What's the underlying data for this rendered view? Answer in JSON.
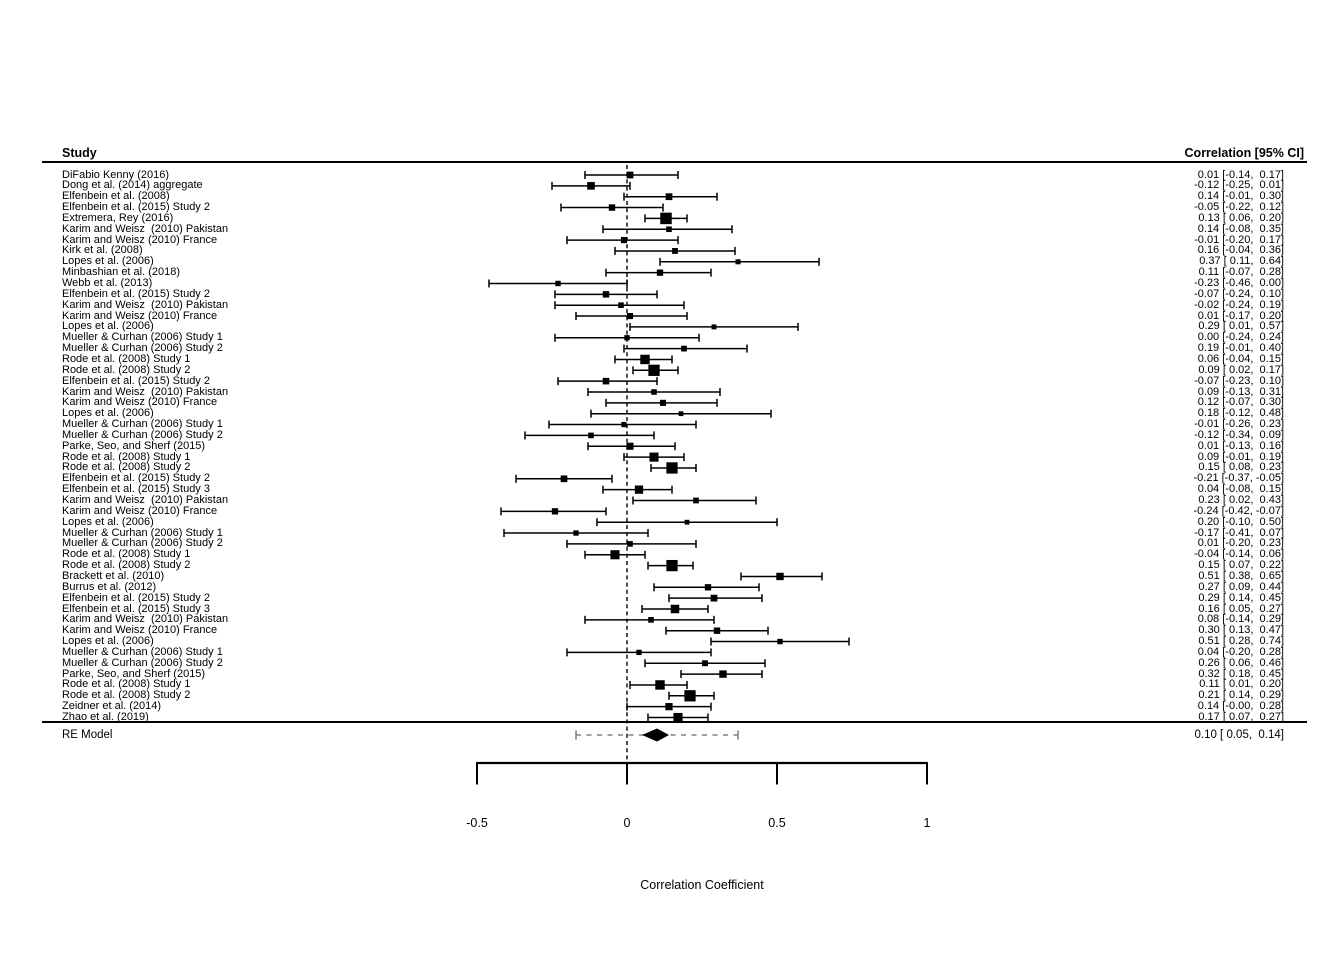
{
  "colors": {
    "foreground": "#000000",
    "background": "#ffffff",
    "summary_interval_dashes": "#808080"
  },
  "chart_data": {
    "type": "scatter",
    "variant": "forest-plot-meta-analysis",
    "title": "",
    "xlabel": "Correlation Coefficient",
    "xlim": [
      -0.5,
      1
    ],
    "xticks": [
      -0.5,
      0,
      0.5,
      1
    ],
    "xtick_labels": [
      "-0.5",
      "0",
      "0.5",
      "1"
    ],
    "zero_reference_line": 0,
    "grid": false,
    "columns": {
      "study": "Study",
      "annotation": "Correlation [95% CI]"
    },
    "rows": [
      {
        "study": "DiFabio Kenny (2016)",
        "est": 0.01,
        "lo": -0.14,
        "hi": 0.17,
        "annotation": "0.01 [-0.14,  0.17]"
      },
      {
        "study": "Dong et al. (2014) aggregate",
        "est": -0.12,
        "lo": -0.25,
        "hi": 0.01,
        "annotation": "-0.12 [-0.25,  0.01]"
      },
      {
        "study": "Elfenbein et al. (2008)",
        "est": 0.14,
        "lo": -0.01,
        "hi": 0.3,
        "annotation": "0.14 [-0.01,  0.30]"
      },
      {
        "study": "Elfenbein et al. (2015) Study 2",
        "est": -0.05,
        "lo": -0.22,
        "hi": 0.12,
        "annotation": "-0.05 [-0.22,  0.12]"
      },
      {
        "study": "Extremera, Rey (2016)",
        "est": 0.13,
        "lo": 0.06,
        "hi": 0.2,
        "annotation": "0.13 [ 0.06,  0.20]"
      },
      {
        "study": "Karim and Weisz  (2010) Pakistan",
        "est": 0.14,
        "lo": -0.08,
        "hi": 0.35,
        "annotation": "0.14 [-0.08,  0.35]"
      },
      {
        "study": "Karim and Weisz (2010) France",
        "est": -0.01,
        "lo": -0.2,
        "hi": 0.17,
        "annotation": "-0.01 [-0.20,  0.17]"
      },
      {
        "study": "Kirk et al. (2008)",
        "est": 0.16,
        "lo": -0.04,
        "hi": 0.36,
        "annotation": "0.16 [-0.04,  0.36]"
      },
      {
        "study": "Lopes et al. (2006)",
        "est": 0.37,
        "lo": 0.11,
        "hi": 0.64,
        "annotation": "0.37 [ 0.11,  0.64]"
      },
      {
        "study": "Minbashian et al. (2018)",
        "est": 0.11,
        "lo": -0.07,
        "hi": 0.28,
        "annotation": "0.11 [-0.07,  0.28]"
      },
      {
        "study": "Webb et al. (2013)",
        "est": -0.23,
        "lo": -0.46,
        "hi": 0.0,
        "annotation": "-0.23 [-0.46,  0.00]"
      },
      {
        "study": "Elfenbein et al. (2015) Study 2",
        "est": -0.07,
        "lo": -0.24,
        "hi": 0.1,
        "annotation": "-0.07 [-0.24,  0.10]"
      },
      {
        "study": "Karim and Weisz  (2010) Pakistan",
        "est": -0.02,
        "lo": -0.24,
        "hi": 0.19,
        "annotation": "-0.02 [-0.24,  0.19]"
      },
      {
        "study": "Karim and Weisz (2010) France",
        "est": 0.01,
        "lo": -0.17,
        "hi": 0.2,
        "annotation": "0.01 [-0.17,  0.20]"
      },
      {
        "study": "Lopes et al. (2006)",
        "est": 0.29,
        "lo": 0.01,
        "hi": 0.57,
        "annotation": "0.29 [ 0.01,  0.57]"
      },
      {
        "study": "Mueller & Curhan (2006) Study 1",
        "est": 0.0,
        "lo": -0.24,
        "hi": 0.24,
        "annotation": "0.00 [-0.24,  0.24]"
      },
      {
        "study": "Mueller & Curhan (2006) Study 2",
        "est": 0.19,
        "lo": -0.01,
        "hi": 0.4,
        "annotation": "0.19 [-0.01,  0.40]"
      },
      {
        "study": "Rode et al. (2008) Study 1",
        "est": 0.06,
        "lo": -0.04,
        "hi": 0.15,
        "annotation": "0.06 [-0.04,  0.15]"
      },
      {
        "study": "Rode et al. (2008) Study 2",
        "est": 0.09,
        "lo": 0.02,
        "hi": 0.17,
        "annotation": "0.09 [ 0.02,  0.17]"
      },
      {
        "study": "Elfenbein et al. (2015) Study 2",
        "est": -0.07,
        "lo": -0.23,
        "hi": 0.1,
        "annotation": "-0.07 [-0.23,  0.10]"
      },
      {
        "study": "Karim and Weisz  (2010) Pakistan",
        "est": 0.09,
        "lo": -0.13,
        "hi": 0.31,
        "annotation": "0.09 [-0.13,  0.31]"
      },
      {
        "study": "Karim and Weisz (2010) France",
        "est": 0.12,
        "lo": -0.07,
        "hi": 0.3,
        "annotation": "0.12 [-0.07,  0.30]"
      },
      {
        "study": "Lopes et al. (2006)",
        "est": 0.18,
        "lo": -0.12,
        "hi": 0.48,
        "annotation": "0.18 [-0.12,  0.48]"
      },
      {
        "study": "Mueller & Curhan (2006) Study 1",
        "est": -0.01,
        "lo": -0.26,
        "hi": 0.23,
        "annotation": "-0.01 [-0.26,  0.23]"
      },
      {
        "study": "Mueller & Curhan (2006) Study 2",
        "est": -0.12,
        "lo": -0.34,
        "hi": 0.09,
        "annotation": "-0.12 [-0.34,  0.09]"
      },
      {
        "study": "Parke, Seo, and Sherf (2015)",
        "est": 0.01,
        "lo": -0.13,
        "hi": 0.16,
        "annotation": "0.01 [-0.13,  0.16]"
      },
      {
        "study": "Rode et al. (2008) Study 1",
        "est": 0.09,
        "lo": -0.01,
        "hi": 0.19,
        "annotation": "0.09 [-0.01,  0.19]"
      },
      {
        "study": "Rode et al. (2008) Study 2",
        "est": 0.15,
        "lo": 0.08,
        "hi": 0.23,
        "annotation": "0.15 [ 0.08,  0.23]"
      },
      {
        "study": "Elfenbein et al. (2015) Study 2",
        "est": -0.21,
        "lo": -0.37,
        "hi": -0.05,
        "annotation": "-0.21 [-0.37, -0.05]"
      },
      {
        "study": "Elfenbein et al. (2015) Study 3",
        "est": 0.04,
        "lo": -0.08,
        "hi": 0.15,
        "annotation": "0.04 [-0.08,  0.15]"
      },
      {
        "study": "Karim and Weisz  (2010) Pakistan",
        "est": 0.23,
        "lo": 0.02,
        "hi": 0.43,
        "annotation": "0.23 [ 0.02,  0.43]"
      },
      {
        "study": "Karim and Weisz (2010) France",
        "est": -0.24,
        "lo": -0.42,
        "hi": -0.07,
        "annotation": "-0.24 [-0.42, -0.07]"
      },
      {
        "study": "Lopes et al. (2006)",
        "est": 0.2,
        "lo": -0.1,
        "hi": 0.5,
        "annotation": "0.20 [-0.10,  0.50]"
      },
      {
        "study": "Mueller & Curhan (2006) Study 1",
        "est": -0.17,
        "lo": -0.41,
        "hi": 0.07,
        "annotation": "-0.17 [-0.41,  0.07]"
      },
      {
        "study": "Mueller & Curhan (2006) Study 2",
        "est": 0.01,
        "lo": -0.2,
        "hi": 0.23,
        "annotation": "0.01 [-0.20,  0.23]"
      },
      {
        "study": "Rode et al. (2008) Study 1",
        "est": -0.04,
        "lo": -0.14,
        "hi": 0.06,
        "annotation": "-0.04 [-0.14,  0.06]"
      },
      {
        "study": "Rode et al. (2008) Study 2",
        "est": 0.15,
        "lo": 0.07,
        "hi": 0.22,
        "annotation": "0.15 [ 0.07,  0.22]"
      },
      {
        "study": "Brackett et al. (2010)",
        "est": 0.51,
        "lo": 0.38,
        "hi": 0.65,
        "annotation": "0.51 [ 0.38,  0.65]"
      },
      {
        "study": "Burrus et al. (2012)",
        "est": 0.27,
        "lo": 0.09,
        "hi": 0.44,
        "annotation": "0.27 [ 0.09,  0.44]"
      },
      {
        "study": "Elfenbein et al. (2015) Study 2",
        "est": 0.29,
        "lo": 0.14,
        "hi": 0.45,
        "annotation": "0.29 [ 0.14,  0.45]"
      },
      {
        "study": "Elfenbein et al. (2015) Study 3",
        "est": 0.16,
        "lo": 0.05,
        "hi": 0.27,
        "annotation": "0.16 [ 0.05,  0.27]"
      },
      {
        "study": "Karim and Weisz  (2010) Pakistan",
        "est": 0.08,
        "lo": -0.14,
        "hi": 0.29,
        "annotation": "0.08 [-0.14,  0.29]"
      },
      {
        "study": "Karim and Weisz (2010) France",
        "est": 0.3,
        "lo": 0.13,
        "hi": 0.47,
        "annotation": "0.30 [ 0.13,  0.47]"
      },
      {
        "study": "Lopes et al. (2006)",
        "est": 0.51,
        "lo": 0.28,
        "hi": 0.74,
        "annotation": "0.51 [ 0.28,  0.74]"
      },
      {
        "study": "Mueller & Curhan (2006) Study 1",
        "est": 0.04,
        "lo": -0.2,
        "hi": 0.28,
        "annotation": "0.04 [-0.20,  0.28]"
      },
      {
        "study": "Mueller & Curhan (2006) Study 2",
        "est": 0.26,
        "lo": 0.06,
        "hi": 0.46,
        "annotation": "0.26 [ 0.06,  0.46]"
      },
      {
        "study": "Parke, Seo, and Sherf (2015)",
        "est": 0.32,
        "lo": 0.18,
        "hi": 0.45,
        "annotation": "0.32 [ 0.18,  0.45]"
      },
      {
        "study": "Rode et al. (2008) Study 1",
        "est": 0.11,
        "lo": 0.01,
        "hi": 0.2,
        "annotation": "0.11 [ 0.01,  0.20]"
      },
      {
        "study": "Rode et al. (2008) Study 2",
        "est": 0.21,
        "lo": 0.14,
        "hi": 0.29,
        "annotation": "0.21 [ 0.14,  0.29]"
      },
      {
        "study": "Zeidner et al. (2014)",
        "est": 0.14,
        "lo": 0.0,
        "hi": 0.28,
        "annotation": "0.14 [-0.00,  0.28]"
      },
      {
        "study": "Zhao et al. (2019)",
        "est": 0.17,
        "lo": 0.07,
        "hi": 0.27,
        "annotation": "0.17 [ 0.07,  0.27]"
      }
    ],
    "summary": {
      "label": "RE Model",
      "est": 0.1,
      "lo": 0.05,
      "hi": 0.14,
      "annotation": "0.10 [ 0.05,  0.14]",
      "dashed_interval_approx": [
        -0.17,
        0.37
      ]
    }
  }
}
